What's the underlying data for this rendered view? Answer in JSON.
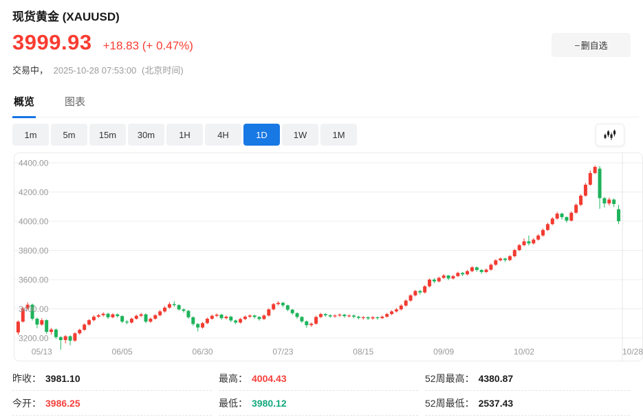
{
  "header": {
    "title": "现货黄金 (XAUUSD)",
    "price": "3999.93",
    "change": "+18.83 (+ 0.47%)",
    "trading_status": "交易中，",
    "timestamp": "2025-10-28 07:53:00",
    "timezone": "(北京时间)",
    "remove_button": {
      "minus": "−",
      "label": "删自选"
    }
  },
  "colors": {
    "price_red": "#fa3c31",
    "accent_blue": "#1878e4",
    "stat_red": "#f4413c",
    "stat_green": "#14a97c"
  },
  "tabs": {
    "items": [
      {
        "label": "概览"
      },
      {
        "label": "图表"
      }
    ],
    "active": "概览"
  },
  "ranges": {
    "items": [
      "1m",
      "5m",
      "15m",
      "30m",
      "1H",
      "4H",
      "1D",
      "1W",
      "1M"
    ],
    "active": "1D"
  },
  "chart_data": {
    "type": "candlestick",
    "symbol": "XAUUSD",
    "up_color": "#f23b31",
    "down_color": "#1eb35b",
    "grid_color": "#ededed",
    "axis_color": "#e5e5e5",
    "label_color": "#999999",
    "y_range": [
      3200,
      4400
    ],
    "y_ticks": [
      {
        "value": 4400,
        "label": "4400.00"
      },
      {
        "value": 4200,
        "label": "4200.00"
      },
      {
        "value": 4000,
        "label": "4000.00"
      },
      {
        "value": 3800,
        "label": "3800.00"
      },
      {
        "value": 3600,
        "label": "3600.00"
      },
      {
        "value": 3400,
        "label": "3400.00"
      },
      {
        "value": 3200,
        "label": "3200.00"
      }
    ],
    "x_ticks": [
      {
        "index": 5,
        "label": "05/13"
      },
      {
        "index": 22,
        "label": "06/05"
      },
      {
        "index": 39,
        "label": "06/30"
      },
      {
        "index": 56,
        "label": "07/23"
      },
      {
        "index": 73,
        "label": "08/15"
      },
      {
        "index": 90,
        "label": "09/09"
      },
      {
        "index": 107,
        "label": "10/02"
      },
      {
        "index": 127,
        "label": "10/28"
      }
    ],
    "candles_format": [
      "open",
      "close",
      "low",
      "high"
    ],
    "candles": [
      [
        3238,
        3312,
        3222,
        3320
      ],
      [
        3312,
        3402,
        3306,
        3412
      ],
      [
        3402,
        3428,
        3394,
        3444
      ],
      [
        3428,
        3332,
        3320,
        3436
      ],
      [
        3332,
        3292,
        3268,
        3340
      ],
      [
        3292,
        3322,
        3284,
        3336
      ],
      [
        3322,
        3242,
        3228,
        3328
      ],
      [
        3242,
        3258,
        3224,
        3270
      ],
      [
        3258,
        3206,
        3194,
        3264
      ],
      [
        3206,
        3186,
        3120,
        3212
      ],
      [
        3186,
        3212,
        3163,
        3220
      ],
      [
        3212,
        3182,
        3150,
        3218
      ],
      [
        3182,
        3232,
        3174,
        3240
      ],
      [
        3232,
        3256,
        3222,
        3264
      ],
      [
        3256,
        3292,
        3249,
        3300
      ],
      [
        3292,
        3322,
        3285,
        3330
      ],
      [
        3322,
        3346,
        3314,
        3356
      ],
      [
        3346,
        3356,
        3337,
        3366
      ],
      [
        3356,
        3366,
        3347,
        3376
      ],
      [
        3366,
        3342,
        3331,
        3372
      ],
      [
        3342,
        3362,
        3335,
        3370
      ],
      [
        3362,
        3350,
        3339,
        3368
      ],
      [
        3350,
        3312,
        3302,
        3356
      ],
      [
        3312,
        3306,
        3294,
        3322
      ],
      [
        3306,
        3332,
        3299,
        3340
      ],
      [
        3332,
        3352,
        3325,
        3360
      ],
      [
        3352,
        3362,
        3343,
        3372
      ],
      [
        3362,
        3312,
        3301,
        3368
      ],
      [
        3312,
        3332,
        3304,
        3340
      ],
      [
        3332,
        3356,
        3325,
        3364
      ],
      [
        3356,
        3382,
        3349,
        3392
      ],
      [
        3382,
        3408,
        3374,
        3418
      ],
      [
        3408,
        3432,
        3401,
        3446
      ],
      [
        3432,
        3425,
        3414,
        3452
      ],
      [
        3425,
        3396,
        3387,
        3432
      ],
      [
        3396,
        3386,
        3374,
        3402
      ],
      [
        3386,
        3342,
        3331,
        3392
      ],
      [
        3342,
        3296,
        3284,
        3348
      ],
      [
        3296,
        3272,
        3245,
        3302
      ],
      [
        3272,
        3302,
        3264,
        3310
      ],
      [
        3302,
        3332,
        3295,
        3340
      ],
      [
        3332,
        3352,
        3325,
        3360
      ],
      [
        3352,
        3360,
        3343,
        3368
      ],
      [
        3360,
        3336,
        3325,
        3366
      ],
      [
        3336,
        3346,
        3327,
        3354
      ],
      [
        3346,
        3320,
        3309,
        3352
      ],
      [
        3320,
        3306,
        3295,
        3326
      ],
      [
        3306,
        3330,
        3299,
        3338
      ],
      [
        3330,
        3346,
        3323,
        3354
      ],
      [
        3346,
        3354,
        3337,
        3362
      ],
      [
        3354,
        3344,
        3333,
        3360
      ],
      [
        3344,
        3330,
        3319,
        3350
      ],
      [
        3330,
        3354,
        3323,
        3362
      ],
      [
        3354,
        3396,
        3347,
        3404
      ],
      [
        3396,
        3432,
        3389,
        3440
      ],
      [
        3432,
        3441,
        3423,
        3453
      ],
      [
        3441,
        3424,
        3410,
        3448
      ],
      [
        3424,
        3394,
        3383,
        3428
      ],
      [
        3394,
        3370,
        3359,
        3400
      ],
      [
        3370,
        3344,
        3333,
        3376
      ],
      [
        3344,
        3314,
        3303,
        3350
      ],
      [
        3314,
        3288,
        3270,
        3320
      ],
      [
        3288,
        3298,
        3277,
        3306
      ],
      [
        3298,
        3344,
        3291,
        3352
      ],
      [
        3344,
        3364,
        3337,
        3372
      ],
      [
        3364,
        3356,
        3345,
        3370
      ],
      [
        3356,
        3348,
        3337,
        3362
      ],
      [
        3348,
        3354,
        3339,
        3362
      ],
      [
        3354,
        3360,
        3345,
        3368
      ],
      [
        3360,
        3350,
        3339,
        3366
      ],
      [
        3350,
        3354,
        3341,
        3362
      ],
      [
        3354,
        3346,
        3335,
        3360
      ],
      [
        3346,
        3338,
        3327,
        3352
      ],
      [
        3338,
        3342,
        3326,
        3350
      ],
      [
        3342,
        3334,
        3323,
        3348
      ],
      [
        3334,
        3342,
        3325,
        3350
      ],
      [
        3342,
        3336,
        3325,
        3348
      ],
      [
        3336,
        3346,
        3329,
        3354
      ],
      [
        3346,
        3364,
        3339,
        3372
      ],
      [
        3364,
        3382,
        3357,
        3390
      ],
      [
        3382,
        3396,
        3375,
        3406
      ],
      [
        3396,
        3422,
        3389,
        3432
      ],
      [
        3422,
        3456,
        3415,
        3464
      ],
      [
        3456,
        3492,
        3449,
        3500
      ],
      [
        3492,
        3522,
        3485,
        3530
      ],
      [
        3522,
        3512,
        3498,
        3530
      ],
      [
        3512,
        3554,
        3505,
        3562
      ],
      [
        3554,
        3600,
        3547,
        3608
      ],
      [
        3600,
        3588,
        3576,
        3610
      ],
      [
        3588,
        3612,
        3581,
        3620
      ],
      [
        3612,
        3628,
        3605,
        3638
      ],
      [
        3628,
        3608,
        3596,
        3632
      ],
      [
        3608,
        3624,
        3601,
        3632
      ],
      [
        3624,
        3646,
        3617,
        3654
      ],
      [
        3646,
        3636,
        3624,
        3652
      ],
      [
        3636,
        3658,
        3629,
        3666
      ],
      [
        3658,
        3684,
        3651,
        3692
      ],
      [
        3684,
        3666,
        3654,
        3690
      ],
      [
        3666,
        3652,
        3640,
        3672
      ],
      [
        3652,
        3668,
        3645,
        3676
      ],
      [
        3668,
        3702,
        3661,
        3710
      ],
      [
        3702,
        3732,
        3695,
        3740
      ],
      [
        3732,
        3744,
        3725,
        3752
      ],
      [
        3744,
        3734,
        3721,
        3750
      ],
      [
        3734,
        3760,
        3727,
        3768
      ],
      [
        3760,
        3802,
        3753,
        3810
      ],
      [
        3802,
        3836,
        3795,
        3844
      ],
      [
        3836,
        3862,
        3829,
        3882
      ],
      [
        3862,
        3848,
        3834,
        3902
      ],
      [
        3848,
        3874,
        3840,
        3884
      ],
      [
        3874,
        3902,
        3867,
        3912
      ],
      [
        3902,
        3940,
        3895,
        3950
      ],
      [
        3940,
        3980,
        3933,
        3990
      ],
      [
        3980,
        4018,
        3973,
        4028
      ],
      [
        4018,
        4052,
        4011,
        4064
      ],
      [
        4052,
        4028,
        4012,
        4058
      ],
      [
        4028,
        4004,
        3990,
        4034
      ],
      [
        4004,
        4058,
        3998,
        4068
      ],
      [
        4058,
        4112,
        4051,
        4122
      ],
      [
        4112,
        4175,
        4105,
        4185
      ],
      [
        4175,
        4250,
        4168,
        4262
      ],
      [
        4250,
        4330,
        4243,
        4348
      ],
      [
        4330,
        4372,
        4323,
        4381
      ],
      [
        4360,
        4158,
        4085,
        4378
      ],
      [
        4158,
        4122,
        4094,
        4165
      ],
      [
        4122,
        4148,
        4108,
        4162
      ],
      [
        4148,
        4118,
        4098,
        4156
      ],
      [
        4082,
        4000,
        3980,
        4112
      ]
    ]
  },
  "stats": {
    "items": [
      {
        "label": "昨收：",
        "value": "3981.10",
        "color": "dark"
      },
      {
        "label": "今开：",
        "value": "3986.25",
        "color": "red"
      },
      {
        "label": "最高：",
        "value": "4004.43",
        "color": "red"
      },
      {
        "label": "最低：",
        "value": "3980.12",
        "color": "green"
      },
      {
        "label": "52周最高：",
        "value": "4380.87",
        "color": "dark"
      },
      {
        "label": "52周最低：",
        "value": "2537.43",
        "color": "dark"
      }
    ]
  }
}
